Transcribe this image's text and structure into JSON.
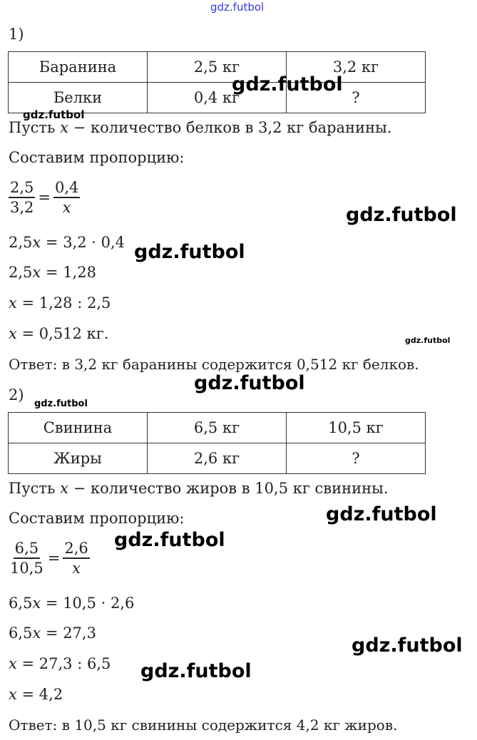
{
  "watermark": "gdz.futbol",
  "part1": {
    "label": "1)",
    "table": [
      [
        "Баранина",
        "2,5 кг",
        "3,2 кг"
      ],
      [
        "Белки",
        "0,4 кг",
        "?"
      ]
    ],
    "let_pre": "Пусть ",
    "var": "x",
    "let_post": " − количество белков в 3,2 кг баранины.",
    "proportion_label": "Составим пропорцию:",
    "frac1": {
      "num": "2,5",
      "den": "3,2"
    },
    "frac2": {
      "num": "0,4",
      "den": "x"
    },
    "eqs": [
      {
        "pre": "2,5",
        "var": "x",
        "post": " = 3,2 · 0,4"
      },
      {
        "pre": "2,5",
        "var": "x",
        "post": " = 1,28"
      },
      {
        "pre": "",
        "var": "x",
        "post": " = 1,28 : 2,5"
      },
      {
        "pre": "",
        "var": "x",
        "post": " = 0,512 кг."
      }
    ],
    "answer": "Ответ: в 3,2 кг баранины содержится 0,512 кг белков."
  },
  "part2": {
    "label": "2)",
    "table": [
      [
        "Свинина",
        "6,5 кг",
        "10,5 кг"
      ],
      [
        "Жиры",
        "2,6 кг",
        "?"
      ]
    ],
    "let_pre": "Пусть ",
    "var": "x",
    "let_post": " − количество жиров в 10,5 кг свинины.",
    "proportion_label": "Составим пропорцию:",
    "frac1": {
      "num": "6,5",
      "den": "10,5"
    },
    "frac2": {
      "num": "2,6",
      "den": "x"
    },
    "eqs": [
      {
        "pre": "6,5",
        "var": "x",
        "post": " = 10,5 · 2,6"
      },
      {
        "pre": "6,5",
        "var": "x",
        "post": " = 27,3"
      },
      {
        "pre": "",
        "var": "x",
        "post": " = 27,3 : 6,5"
      },
      {
        "pre": "",
        "var": "x",
        "post": " = 4,2"
      }
    ],
    "answer": "Ответ: в 10,5 кг свинины содержится 4,2 кг жиров."
  }
}
